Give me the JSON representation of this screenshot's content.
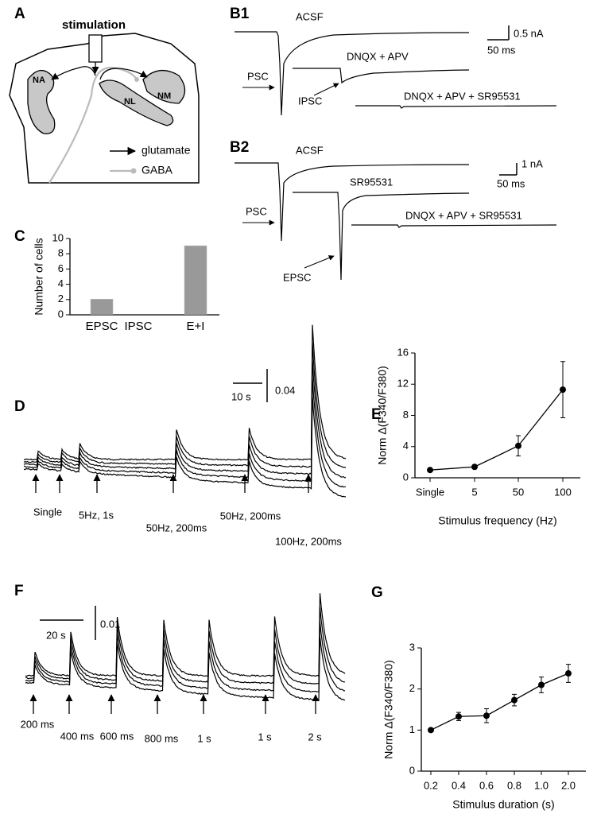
{
  "panel_labels": [
    "A",
    "B1",
    "B2",
    "C",
    "D",
    "E",
    "F",
    "G"
  ],
  "panel_a": {
    "stimulation": "stimulation",
    "regions": [
      "NA",
      "NL",
      "NM"
    ],
    "legend": [
      "glutamate",
      "GABA"
    ]
  },
  "panel_b1": {
    "traces": [
      "ACSF",
      "DNQX + APV",
      "DNQX + APV + SR95531"
    ],
    "arrows": [
      "PSC",
      "IPSC"
    ],
    "scale_current": "0.5 nA",
    "scale_time": "50 ms"
  },
  "panel_b2": {
    "traces": [
      "ACSF",
      "SR95531",
      "DNQX + APV + SR95531"
    ],
    "arrows": [
      "PSC",
      "EPSC"
    ],
    "scale_current": "1 nA",
    "scale_time": "50 ms"
  },
  "panel_d": {
    "scale_time": "10 s",
    "scale_ratio": "0.04",
    "stimuli": [
      "Single",
      "5Hz, 1s",
      "50Hz, 200ms",
      "50Hz, 200ms",
      "100Hz, 200ms"
    ]
  },
  "panel_f": {
    "scale_time": "20 s",
    "scale_ratio": "0.01",
    "stimuli": [
      "200 ms",
      "400 ms",
      "600 ms",
      "800 ms",
      "1 s",
      "1 s",
      "2 s"
    ]
  },
  "chart_data": [
    {
      "type": "bar",
      "ylabel": "Number of cells",
      "categories": [
        "EPSC",
        "IPSC",
        "E+I"
      ],
      "values": [
        2,
        0,
        9
      ],
      "color": "#999999",
      "ylim": [
        0,
        10
      ],
      "yticks": [
        0,
        2,
        4,
        6,
        8,
        10
      ]
    },
    {
      "type": "line",
      "xlabel": "Stimulus frequency (Hz)",
      "ylabel": "Norm Δ(F340/F380)",
      "categories": [
        "Single",
        "5",
        "50",
        "100"
      ],
      "values": [
        1.0,
        1.4,
        4.1,
        11.3
      ],
      "errors": [
        0.1,
        0.1,
        1.3,
        3.6
      ],
      "color": "#000000",
      "ylim": [
        0,
        16
      ],
      "yticks": [
        0,
        4,
        8,
        12,
        16
      ]
    },
    {
      "type": "line",
      "xlabel": "Stimulus duration (s)",
      "ylabel": "Norm Δ(F340/F380)",
      "categories": [
        "0.2",
        "0.4",
        "0.6",
        "0.8",
        "1.0",
        "2.0"
      ],
      "values": [
        1.0,
        1.33,
        1.35,
        1.73,
        2.1,
        2.38
      ],
      "errors": [
        0.04,
        0.1,
        0.17,
        0.14,
        0.19,
        0.22
      ],
      "color": "#000000",
      "ylim": [
        0,
        3
      ],
      "yticks": [
        0,
        1,
        2,
        3
      ]
    }
  ]
}
